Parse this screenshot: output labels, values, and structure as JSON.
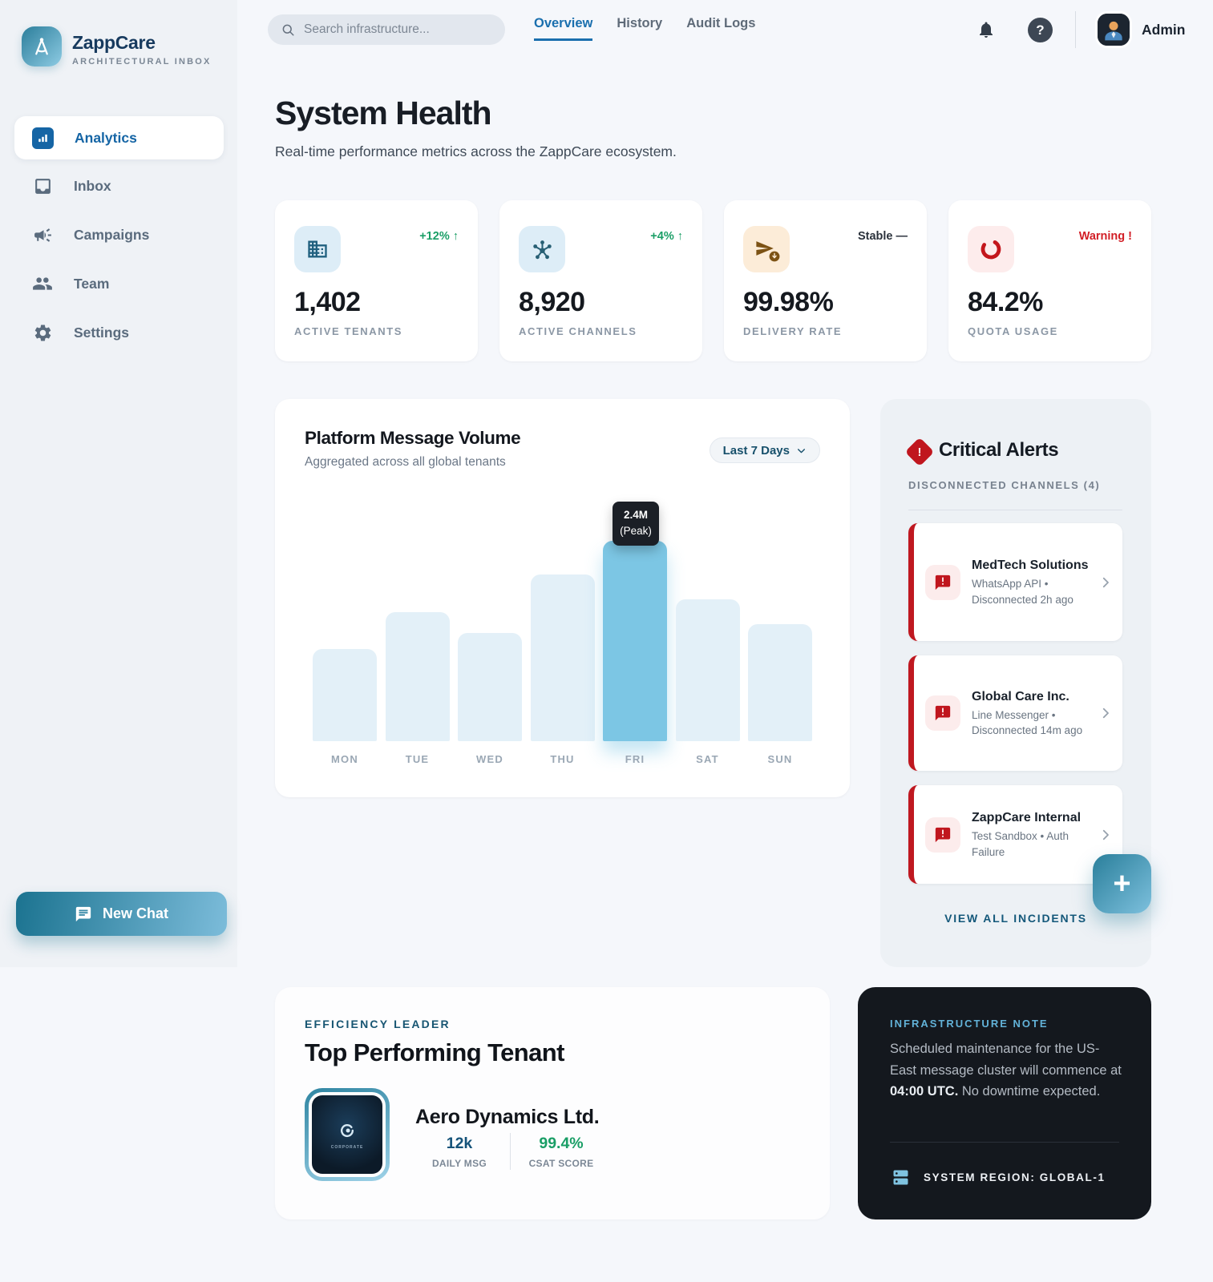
{
  "brand": {
    "name": "ZappCare",
    "tagline": "ARCHITECTURAL INBOX"
  },
  "sidebar": {
    "items": [
      {
        "label": "Analytics",
        "active": true
      },
      {
        "label": "Inbox",
        "active": false
      },
      {
        "label": "Campaigns",
        "active": false
      },
      {
        "label": "Team",
        "active": false
      },
      {
        "label": "Settings",
        "active": false
      }
    ],
    "new_chat_label": "New Chat"
  },
  "header": {
    "search_placeholder": "Search infrastructure...",
    "tabs": [
      {
        "label": "Overview",
        "active": true
      },
      {
        "label": "History",
        "active": false
      },
      {
        "label": "Audit Logs",
        "active": false
      }
    ],
    "user_name": "Admin",
    "help_glyph": "?"
  },
  "page": {
    "title": "System Health",
    "subtitle": "Real-time performance metrics across the ZappCare ecosystem."
  },
  "stats": [
    {
      "value": "1,402",
      "label": "ACTIVE TENANTS",
      "trend": "+12% ↑",
      "icon": "building-icon"
    },
    {
      "value": "8,920",
      "label": "ACTIVE CHANNELS",
      "trend": "+4% ↑",
      "icon": "hub-icon"
    },
    {
      "value": "99.98%",
      "label": "DELIVERY RATE",
      "trend": "Stable —",
      "icon": "send-icon"
    },
    {
      "value": "84.2%",
      "label": "QUOTA USAGE",
      "trend": "Warning !",
      "icon": "quota-arc-icon"
    }
  ],
  "chart": {
    "title": "Platform Message Volume",
    "subtitle": "Aggregated across all global tenants",
    "range_label": "Last 7 Days",
    "tooltip_line1": "2.4M",
    "tooltip_line2": "(Peak)"
  },
  "chart_data": {
    "type": "bar",
    "title": "Platform Message Volume",
    "categories": [
      "MON",
      "TUE",
      "WED",
      "THU",
      "FRI",
      "SAT",
      "SUN"
    ],
    "values": [
      1.1,
      1.55,
      1.3,
      2.0,
      2.4,
      1.7,
      1.4
    ],
    "unit": "millions of messages per day",
    "ylim": [
      0,
      2.4
    ],
    "highlight_index": 4,
    "annotation": "2.4M (Peak)",
    "grid": false,
    "legend": false
  },
  "alerts": {
    "title": "Critical Alerts",
    "section_label": "DISCONNECTED CHANNELS (4)",
    "items": [
      {
        "title": "MedTech Solutions",
        "detail": "WhatsApp API • Disconnected 2h ago"
      },
      {
        "title": "Global Care Inc.",
        "detail": "Line Messenger • Disconnected 14m ago"
      },
      {
        "title": "ZappCare Internal",
        "detail": "Test Sandbox • Auth Failure"
      }
    ],
    "footer_label": "VIEW ALL INCIDENTS",
    "fab_glyph": "+"
  },
  "tenant": {
    "eyebrow": "EFFICIENCY LEADER",
    "title": "Top Performing Tenant",
    "name": "Aero Dynamics Ltd.",
    "logo_caption": "CORPORATE",
    "stats": [
      {
        "value": "12k",
        "label": "DAILY MSG"
      },
      {
        "value": "99.4%",
        "label": "CSAT SCORE"
      }
    ]
  },
  "note": {
    "eyebrow": "INFRASTRUCTURE NOTE",
    "body_1": "Scheduled maintenance for the US-East message cluster will commence at ",
    "body_strong": "04:00 UTC.",
    "body_2": " No downtime expected.",
    "footer": "SYSTEM REGION: GLOBAL-1"
  },
  "colors": {
    "accent_teal": "#1b7390",
    "accent_blue": "#1565a5",
    "alert_red": "#c0161e",
    "success_green": "#1a9e66",
    "warning_red": "#d21e26",
    "bar_highlight": "#7cc6e4",
    "bar_base": "#e3f0f8",
    "dark_card": "#14181e"
  }
}
